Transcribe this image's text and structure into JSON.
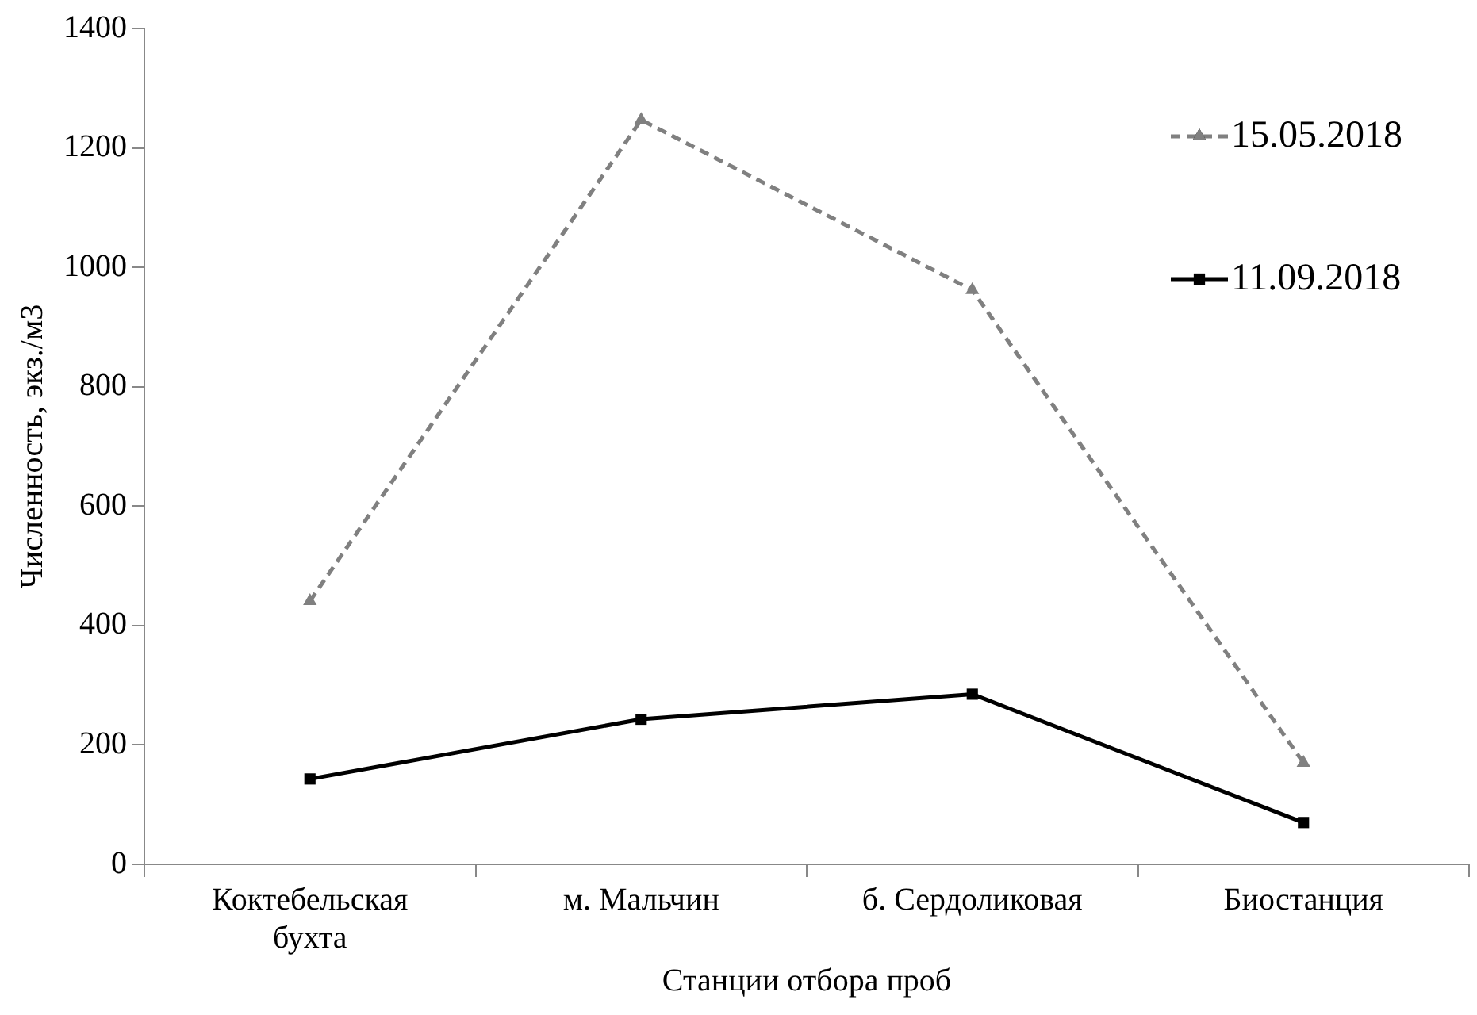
{
  "chart_data": {
    "type": "line",
    "xlabel": "Станции отбора проб",
    "ylabel": "Численность, экз./м3",
    "categories": [
      "Коктебельская бухта",
      "м. Мальчин",
      "б. Сердоликовая",
      "Биостанция"
    ],
    "series": [
      {
        "name": "15.05.2018",
        "color": "#808080",
        "values": [
          441,
          1247,
          962,
          170
        ],
        "marker": "triangle",
        "line_style": "dashed"
      },
      {
        "name": "11.09.2018",
        "color": "#000000",
        "values": [
          143,
          243,
          285,
          70
        ],
        "marker": "square",
        "line_style": "solid"
      }
    ],
    "ylim": [
      0,
      1400
    ],
    "yticks": [
      0,
      200,
      400,
      600,
      800,
      1000,
      1200,
      1400
    ],
    "grid": false,
    "legend": "top right"
  }
}
